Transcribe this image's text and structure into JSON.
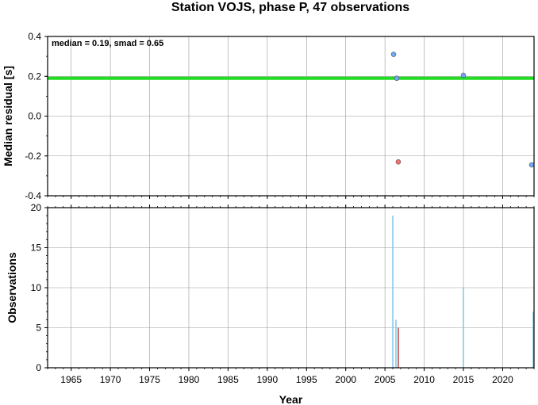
{
  "chart_data": [
    {
      "type": "scatter",
      "title": "Station VOJS, phase P, 47 observations",
      "ylabel": "Median residual [s]",
      "xlim": [
        1962,
        2024
      ],
      "ylim": [
        -0.4,
        0.4
      ],
      "grid": true,
      "yticks": [
        "-0.4",
        "-0.2",
        "0.0",
        "0.2",
        "0.4"
      ],
      "ytick_values": [
        -0.4,
        -0.2,
        0.0,
        0.2,
        0.4
      ],
      "annotation": "median = 0.19, smad = 0.65",
      "median_line": {
        "y": 0.19,
        "color": "#22dd22"
      },
      "points": [
        {
          "x": 2006.1,
          "y": 0.31,
          "color": "#6fa8f0"
        },
        {
          "x": 2006.5,
          "y": 0.19,
          "color": "#6fa8f0"
        },
        {
          "x": 2006.7,
          "y": -0.23,
          "color": "#f07070"
        },
        {
          "x": 2015.0,
          "y": 0.205,
          "color": "#6fa8f0"
        },
        {
          "x": 2023.7,
          "y": -0.245,
          "color": "#6fa8f0"
        }
      ]
    },
    {
      "type": "bar",
      "xlabel": "Year",
      "ylabel": "Observations",
      "xlim": [
        1962,
        2024
      ],
      "ylim": [
        0,
        20
      ],
      "grid": true,
      "xticks": [
        "1965",
        "1970",
        "1975",
        "1980",
        "1985",
        "1990",
        "1995",
        "2000",
        "2005",
        "2010",
        "2015",
        "2020"
      ],
      "xtick_values": [
        1965,
        1970,
        1975,
        1980,
        1985,
        1990,
        1995,
        2000,
        2005,
        2010,
        2015,
        2020
      ],
      "yticks": [
        "0",
        "5",
        "10",
        "15",
        "20"
      ],
      "ytick_values": [
        0,
        5,
        10,
        15,
        20
      ],
      "bars": [
        {
          "x": 2006.0,
          "value": 19,
          "color": "#7ec8e8"
        },
        {
          "x": 2006.4,
          "value": 6,
          "color": "#7ec8e8"
        },
        {
          "x": 2006.7,
          "value": 5,
          "color": "#c04040"
        },
        {
          "x": 2015.0,
          "value": 10,
          "color": "#7ec8e8"
        },
        {
          "x": 2023.9,
          "value": 7,
          "color": "#7ec8e8"
        }
      ]
    }
  ]
}
